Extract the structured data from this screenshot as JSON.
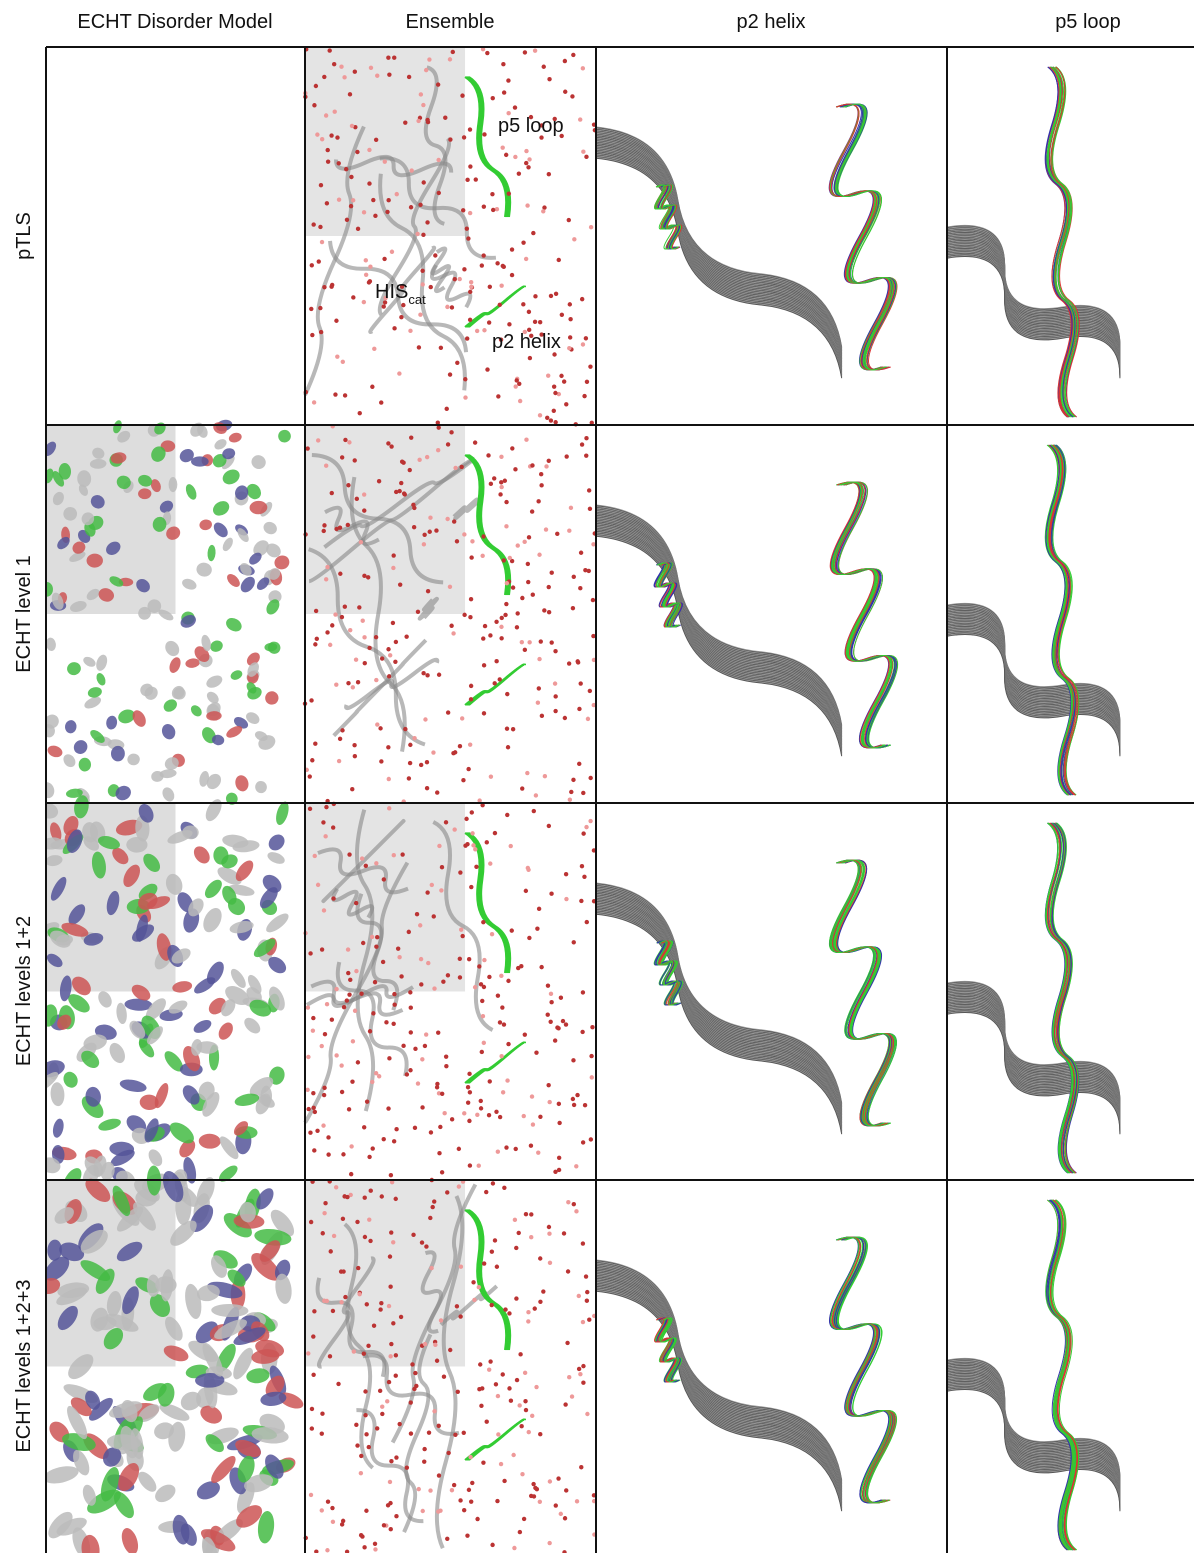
{
  "header": {
    "columns": [
      "ECHT Disorder Model",
      "Ensemble",
      "p2 helix",
      "p5 loop"
    ]
  },
  "rows": [
    "pTLS",
    "ECHT level 1",
    "ECHT levels 1+2",
    "ECHT levels 1+2+3"
  ],
  "annotations": {
    "p5_loop": "p5 loop",
    "his": "HIS",
    "his_sub": "cat",
    "p2_helix": "p2 helix"
  }
}
